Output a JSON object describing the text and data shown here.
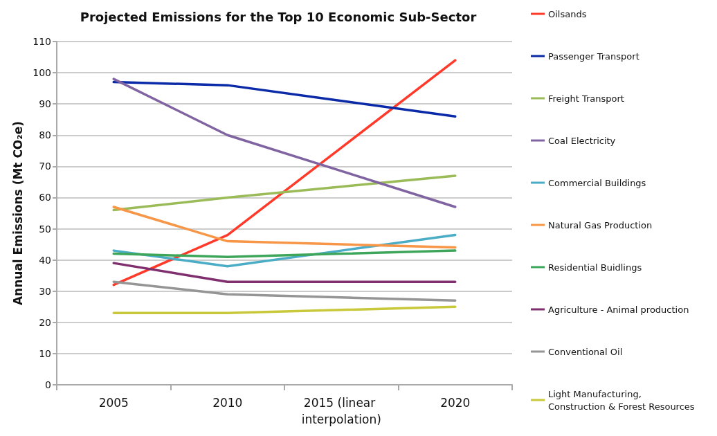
{
  "chart_data": {
    "type": "line",
    "title": "Projected Emissions for the Top 10 Economic Sub-Sector",
    "ylabel": "Annual Emissions (Mt CO₂e)",
    "categories": [
      "2005",
      "2010",
      "2015 (linear interpolation)",
      "2020"
    ],
    "series": [
      {
        "name": "Oilsands",
        "color": "#ff3a2a",
        "values": [
          32,
          48,
          76,
          104
        ]
      },
      {
        "name": "Passenger Transport",
        "color": "#0a2aa8",
        "values": [
          97,
          96,
          91,
          86
        ]
      },
      {
        "name": "Freight Transport",
        "color": "#9bbb59",
        "values": [
          56,
          60,
          63.5,
          67
        ]
      },
      {
        "name": "Coal Electricity",
        "color": "#8064a2",
        "values": [
          98,
          80,
          68.5,
          57
        ]
      },
      {
        "name": "Commercial Buildings",
        "color": "#4bacc6",
        "values": [
          43,
          38,
          43,
          48
        ]
      },
      {
        "name": "Natural Gas Production",
        "color": "#f79646",
        "values": [
          57,
          46,
          45,
          44
        ]
      },
      {
        "name": "Residential Buidlings",
        "color": "#3ea65a",
        "values": [
          42,
          41,
          42,
          43
        ]
      },
      {
        "name": "Agriculture - Animal production",
        "color": "#7f2e6e",
        "values": [
          39,
          33,
          33,
          33
        ]
      },
      {
        "name": "Conventional Oil",
        "color": "#959595",
        "values": [
          33,
          29,
          28,
          27
        ]
      },
      {
        "name": "Light Manufacturing, Construction & Forest Resources",
        "color": "#c8c83a",
        "values": [
          23,
          23,
          24,
          25
        ]
      }
    ],
    "ylim": [
      0,
      110
    ],
    "yticks": [
      0,
      10,
      20,
      30,
      40,
      50,
      60,
      70,
      80,
      90,
      100,
      110
    ],
    "grid": "y",
    "legend": "right",
    "marker": "none",
    "line_style": "solid"
  }
}
